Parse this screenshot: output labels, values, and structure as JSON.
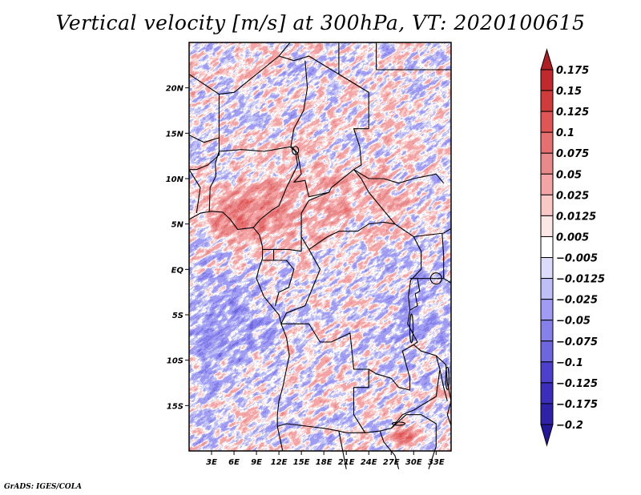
{
  "chart_data": {
    "type": "heatmap",
    "title": "Vertical velocity [m/s] at 300hPa, VT: 2020100615",
    "variable": "Vertical velocity",
    "units": "m/s",
    "level": "300hPa",
    "valid_time": "2020100615",
    "xlabel": "",
    "ylabel": "",
    "x_range_deg": [
      0,
      35
    ],
    "y_range_deg": [
      -20,
      25
    ],
    "x_ticks": [
      {
        "value": 3,
        "label": "3E"
      },
      {
        "value": 6,
        "label": "6E"
      },
      {
        "value": 9,
        "label": "9E"
      },
      {
        "value": 12,
        "label": "12E"
      },
      {
        "value": 15,
        "label": "15E"
      },
      {
        "value": 18,
        "label": "18E"
      },
      {
        "value": 21,
        "label": "21E"
      },
      {
        "value": 24,
        "label": "24E"
      },
      {
        "value": 27,
        "label": "27E"
      },
      {
        "value": 30,
        "label": "30E"
      },
      {
        "value": 33,
        "label": "33E"
      }
    ],
    "y_ticks": [
      {
        "value": 20,
        "label": "20N"
      },
      {
        "value": 15,
        "label": "15N"
      },
      {
        "value": 10,
        "label": "10N"
      },
      {
        "value": 5,
        "label": "5N"
      },
      {
        "value": 0,
        "label": "EQ"
      },
      {
        "value": -5,
        "label": "5S"
      },
      {
        "value": -10,
        "label": "10S"
      },
      {
        "value": -15,
        "label": "15S"
      }
    ],
    "colorbar": {
      "placement": "right",
      "orientation": "vertical",
      "labels": [
        "0.175",
        "0.15",
        "0.125",
        "0.1",
        "0.075",
        "0.05",
        "0.025",
        "0.0125",
        "0.005",
        "-0.005",
        "-0.0125",
        "-0.025",
        "-0.05",
        "-0.075",
        "-0.1",
        "-0.125",
        "-0.175",
        "-0.2"
      ],
      "levels": [
        0.175,
        0.15,
        0.125,
        0.1,
        0.075,
        0.05,
        0.025,
        0.0125,
        0.005,
        -0.005,
        -0.0125,
        -0.025,
        -0.05,
        -0.075,
        -0.1,
        -0.125,
        -0.175,
        -0.2
      ],
      "colors": [
        "#b01f24",
        "#c02a2e",
        "#d03c3c",
        "#e05656",
        "#e67070",
        "#e88a8c",
        "#f4a4a4",
        "#fbc8c8",
        "#fde6e6",
        "#ffffff",
        "#dcdcfa",
        "#bfbff8",
        "#a09cf4",
        "#8680ea",
        "#6e66de",
        "#4c40cc",
        "#3a2eba",
        "#2e22a8",
        "#24189a"
      ],
      "extend": "both"
    },
    "features": [
      "country-borders",
      "coastlines",
      "lakes"
    ],
    "pattern_notes": [
      "Strong upward (red) motion over southern Nigeria, Cameroon and the Gulf of Guinea coast",
      "Weak downward (blue) motion over the South Atlantic off Angola/Gabon",
      "Mixed small-scale structure over Central African Republic, DR Congo and Sudan",
      "Localized strong positive values over northern Zimbabwe near 27-30E, 18S"
    ]
  },
  "footer": {
    "credit": "GrADS: IGES/COLA"
  }
}
